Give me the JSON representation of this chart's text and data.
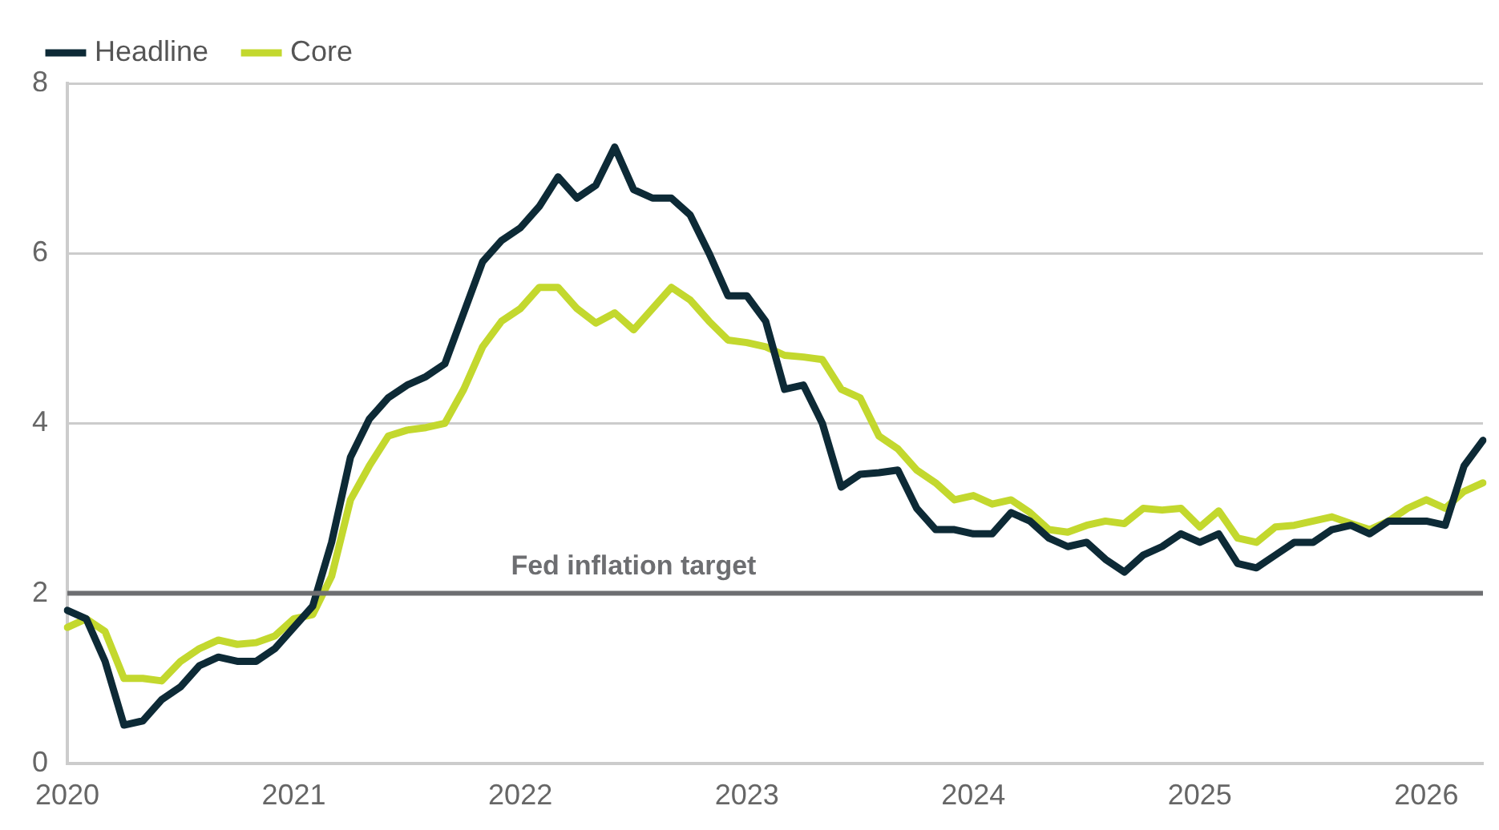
{
  "chart_data": {
    "type": "line",
    "categories": [
      "2020",
      null,
      null,
      null,
      null,
      null,
      null,
      null,
      null,
      null,
      null,
      null,
      "2021",
      null,
      null,
      null,
      null,
      null,
      null,
      null,
      null,
      null,
      null,
      null,
      "2022",
      null,
      null,
      null,
      null,
      null,
      null,
      null,
      null,
      null,
      null,
      null,
      "2023",
      null,
      null,
      null,
      null,
      null,
      null,
      null,
      null,
      null,
      null,
      null,
      "2024",
      null,
      null,
      null,
      null,
      null,
      null,
      null,
      null,
      null,
      null,
      null,
      "2025",
      null,
      null,
      null,
      null,
      null,
      null,
      null,
      null,
      null,
      null,
      null,
      "2026",
      null,
      null,
      null
    ],
    "series": [
      {
        "name": "Headline",
        "color": "#0d2a36",
        "values": [
          1.8,
          1.7,
          1.2,
          0.45,
          0.5,
          0.75,
          0.9,
          1.15,
          1.25,
          1.2,
          1.2,
          1.35,
          1.6,
          1.85,
          2.6,
          3.6,
          4.05,
          4.3,
          4.45,
          4.55,
          4.7,
          5.3,
          5.9,
          6.15,
          6.3,
          6.55,
          6.9,
          6.65,
          6.8,
          7.25,
          6.75,
          6.65,
          6.65,
          6.45,
          6.0,
          5.5,
          5.5,
          5.2,
          4.4,
          4.45,
          4.0,
          3.25,
          3.4,
          3.42,
          3.45,
          3.0,
          2.75,
          2.75,
          2.7,
          2.7,
          2.95,
          2.85,
          2.65,
          2.55,
          2.6,
          2.4,
          2.25,
          2.45,
          2.55,
          2.7,
          2.6,
          2.7,
          2.35,
          2.3,
          2.45,
          2.6,
          2.6,
          2.75,
          2.8,
          2.7,
          2.85,
          2.85,
          2.85,
          2.8,
          3.5,
          3.8
        ]
      },
      {
        "name": "Core",
        "color": "#c3d82e",
        "values": [
          1.6,
          1.7,
          1.55,
          1.0,
          1.0,
          0.97,
          1.2,
          1.35,
          1.45,
          1.4,
          1.42,
          1.5,
          1.7,
          1.75,
          2.2,
          3.1,
          3.5,
          3.85,
          3.92,
          3.95,
          4.0,
          4.4,
          4.9,
          5.2,
          5.35,
          5.6,
          5.6,
          5.35,
          5.18,
          5.3,
          5.1,
          5.35,
          5.6,
          5.45,
          5.2,
          4.98,
          4.95,
          4.9,
          4.8,
          4.78,
          4.75,
          4.4,
          4.3,
          3.85,
          3.7,
          3.45,
          3.3,
          3.1,
          3.15,
          3.05,
          3.1,
          2.95,
          2.75,
          2.72,
          2.8,
          2.85,
          2.82,
          3.0,
          2.98,
          3.0,
          2.78,
          2.97,
          2.65,
          2.6,
          2.78,
          2.8,
          2.85,
          2.9,
          2.82,
          2.75,
          2.85,
          3.0,
          3.1,
          3.0,
          3.2,
          3.3
        ]
      }
    ],
    "ylim": [
      0,
      8
    ],
    "yticks": [
      0,
      2,
      4,
      6,
      8
    ],
    "grid": "y",
    "legend": "top left",
    "marker": "none",
    "line_style": "solid",
    "ref_lines": [
      {
        "axis": "y",
        "value": 2,
        "label": "Fed inflation target",
        "color": "#6d6e71"
      }
    ]
  }
}
